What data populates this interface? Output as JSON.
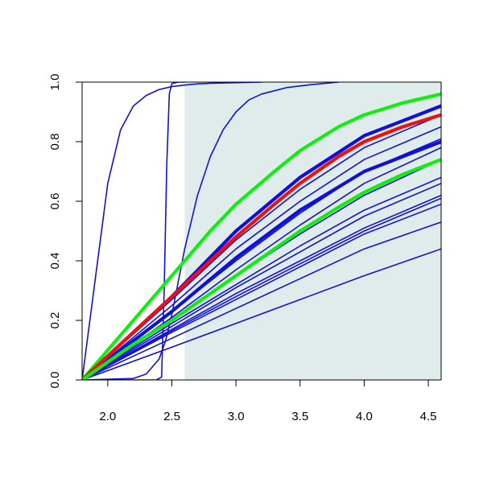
{
  "chart_data": {
    "type": "line",
    "title": "",
    "xlabel": "",
    "ylabel": "",
    "xlim": [
      1.8,
      4.6
    ],
    "ylim": [
      0.0,
      1.0
    ],
    "x_ticks": [
      2.0,
      2.5,
      3.0,
      3.5,
      4.0,
      4.5
    ],
    "x_tick_labels": [
      "2.0",
      "2.5",
      "3.0",
      "3.5",
      "4.0",
      "4.5"
    ],
    "y_ticks": [
      0.0,
      0.2,
      0.4,
      0.6,
      0.8,
      1.0
    ],
    "y_tick_labels": [
      "0.0",
      "0.2",
      "0.4",
      "0.6",
      "0.8",
      "1.0"
    ],
    "grid": false,
    "legend": "none",
    "shaded_region": {
      "x_from": 2.6,
      "x_to": 4.6,
      "color": "#e0ecec"
    },
    "colors": {
      "blue": "#1010d8",
      "red": "#ee1010",
      "green": "#10ee10"
    },
    "series": [
      {
        "color": "blue",
        "width": "thin",
        "x": [
          1.8,
          1.9,
          2.0,
          2.1,
          2.2,
          2.3,
          2.4,
          2.5,
          2.6,
          2.7,
          2.8,
          3.0,
          3.2
        ],
        "values": [
          0.0,
          0.33,
          0.66,
          0.84,
          0.92,
          0.955,
          0.975,
          0.985,
          0.99,
          0.994,
          0.996,
          0.998,
          1.0
        ]
      },
      {
        "color": "blue",
        "width": "thin",
        "x": [
          1.8,
          2.2,
          2.3,
          2.38,
          2.42,
          2.44,
          2.46,
          2.48,
          2.5,
          2.55,
          2.6
        ],
        "values": [
          0.0,
          0.0,
          0.0,
          0.0,
          0.01,
          0.3,
          0.72,
          0.96,
          0.995,
          1.0,
          1.0
        ]
      },
      {
        "color": "blue",
        "width": "thin",
        "x": [
          1.8,
          2.2,
          2.3,
          2.4,
          2.45,
          2.5,
          2.55,
          2.6,
          2.7,
          2.8,
          2.9,
          3.0,
          3.1,
          3.2,
          3.4,
          3.6,
          3.8
        ],
        "values": [
          0.0,
          0.005,
          0.02,
          0.07,
          0.13,
          0.22,
          0.33,
          0.44,
          0.62,
          0.75,
          0.84,
          0.9,
          0.94,
          0.96,
          0.982,
          0.992,
          1.0
        ]
      },
      {
        "color": "blue",
        "width": "thin",
        "x": [
          1.8,
          2.5,
          3.0,
          3.5,
          4.0,
          4.6
        ],
        "values": [
          0.0,
          0.11,
          0.19,
          0.27,
          0.35,
          0.44
        ]
      },
      {
        "color": "blue",
        "width": "thin",
        "x": [
          1.8,
          2.5,
          3.0,
          3.5,
          4.0,
          4.6
        ],
        "values": [
          0.0,
          0.14,
          0.24,
          0.34,
          0.44,
          0.53
        ]
      },
      {
        "color": "blue",
        "width": "thin",
        "x": [
          1.8,
          2.5,
          3.0,
          3.5,
          4.0,
          4.6
        ],
        "values": [
          0.0,
          0.16,
          0.27,
          0.38,
          0.49,
          0.59
        ]
      },
      {
        "color": "blue",
        "width": "thin",
        "x": [
          1.8,
          2.5,
          3.0,
          3.5,
          4.0,
          4.6
        ],
        "values": [
          0.0,
          0.165,
          0.28,
          0.39,
          0.5,
          0.61
        ]
      },
      {
        "color": "blue",
        "width": "thin",
        "x": [
          1.8,
          2.5,
          3.0,
          3.5,
          4.0,
          4.6
        ],
        "values": [
          0.0,
          0.17,
          0.29,
          0.4,
          0.51,
          0.62
        ]
      },
      {
        "color": "blue",
        "width": "thin",
        "x": [
          1.8,
          2.5,
          3.0,
          3.5,
          4.0,
          4.6
        ],
        "values": [
          0.0,
          0.18,
          0.31,
          0.43,
          0.55,
          0.66
        ]
      },
      {
        "color": "blue",
        "width": "thin",
        "x": [
          1.8,
          2.5,
          3.0,
          3.5,
          4.0,
          4.6
        ],
        "values": [
          0.0,
          0.19,
          0.32,
          0.45,
          0.57,
          0.68
        ]
      },
      {
        "color": "blue",
        "width": "thin",
        "x": [
          1.8,
          2.5,
          3.0,
          3.5,
          4.0,
          4.6
        ],
        "values": [
          0.0,
          0.2,
          0.35,
          0.49,
          0.62,
          0.74
        ]
      },
      {
        "color": "blue",
        "width": "thin",
        "x": [
          1.8,
          2.5,
          3.0,
          3.5,
          4.0,
          4.6
        ],
        "values": [
          0.0,
          0.21,
          0.37,
          0.52,
          0.66,
          0.78
        ]
      },
      {
        "color": "blue",
        "width": "thin",
        "x": [
          1.8,
          2.5,
          3.0,
          3.5,
          4.0,
          4.6
        ],
        "values": [
          0.0,
          0.23,
          0.4,
          0.56,
          0.7,
          0.81
        ]
      },
      {
        "color": "blue",
        "width": "thin",
        "x": [
          1.8,
          2.5,
          3.0,
          3.5,
          4.0,
          4.6
        ],
        "values": [
          0.0,
          0.25,
          0.44,
          0.6,
          0.74,
          0.85
        ]
      },
      {
        "color": "blue",
        "width": "thin",
        "x": [
          1.8,
          2.5,
          3.0,
          3.5,
          4.0,
          4.6
        ],
        "values": [
          0.0,
          0.27,
          0.47,
          0.64,
          0.78,
          0.89
        ]
      },
      {
        "color": "blue",
        "width": "thick",
        "x": [
          1.8,
          2.5,
          3.0,
          3.5,
          4.0,
          4.6
        ],
        "values": [
          0.0,
          0.28,
          0.5,
          0.68,
          0.82,
          0.92
        ]
      },
      {
        "color": "blue",
        "width": "thick",
        "x": [
          1.8,
          2.5,
          3.0,
          3.5,
          4.0,
          4.6
        ],
        "values": [
          0.0,
          0.23,
          0.41,
          0.57,
          0.7,
          0.8
        ]
      },
      {
        "color": "green",
        "width": "thick",
        "x": [
          1.8,
          2.2,
          2.5,
          2.8,
          3.0,
          3.3,
          3.5,
          3.8,
          4.0,
          4.3,
          4.6
        ],
        "values": [
          0.0,
          0.2,
          0.35,
          0.5,
          0.59,
          0.7,
          0.77,
          0.85,
          0.89,
          0.93,
          0.96
        ]
      },
      {
        "color": "red",
        "width": "thick",
        "x": [
          1.8,
          2.2,
          2.5,
          2.8,
          3.0,
          3.3,
          3.5,
          3.8,
          4.0,
          4.3,
          4.6
        ],
        "values": [
          0.0,
          0.16,
          0.28,
          0.4,
          0.48,
          0.59,
          0.66,
          0.75,
          0.8,
          0.85,
          0.89
        ]
      },
      {
        "color": "green",
        "width": "thick",
        "x": [
          1.8,
          2.2,
          2.5,
          2.8,
          3.0,
          3.3,
          3.5,
          3.8,
          4.0,
          4.3,
          4.6
        ],
        "values": [
          0.0,
          0.12,
          0.2,
          0.29,
          0.35,
          0.44,
          0.5,
          0.58,
          0.63,
          0.69,
          0.74
        ]
      }
    ]
  }
}
